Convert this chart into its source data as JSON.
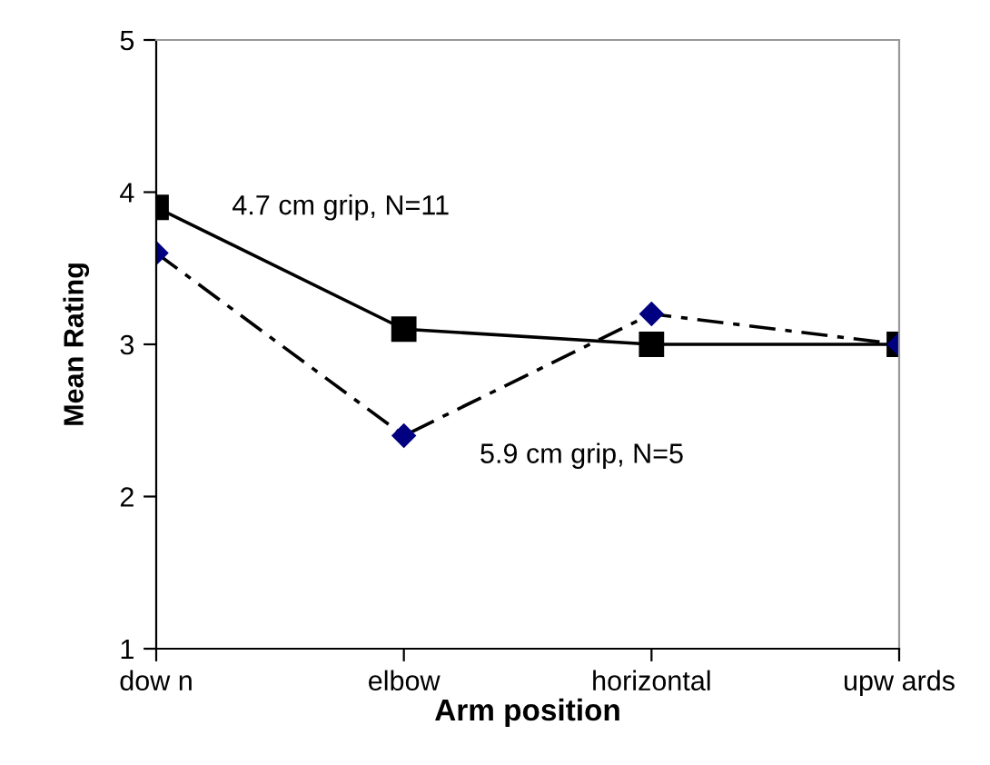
{
  "chart_data": {
    "type": "line",
    "xlabel": "Arm position",
    "ylabel": "Mean Rating",
    "categories": [
      "dow n",
      "elbow",
      "horizontal",
      "upw ards"
    ],
    "series": [
      {
        "name": "4.7 cm grip, N=11",
        "color": "#000000",
        "marker": "square",
        "line_style": "solid",
        "values": [
          3.9,
          3.1,
          3.0,
          3.0
        ]
      },
      {
        "name": "5.9 cm grip, N=5",
        "color": "#000080",
        "marker": "diamond",
        "line_style": "dashed",
        "values": [
          3.6,
          2.4,
          3.2,
          3.0
        ]
      }
    ],
    "ylim": [
      1,
      5
    ],
    "yticks": [
      1,
      2,
      3,
      4,
      5
    ],
    "grid": false,
    "legend": false
  }
}
